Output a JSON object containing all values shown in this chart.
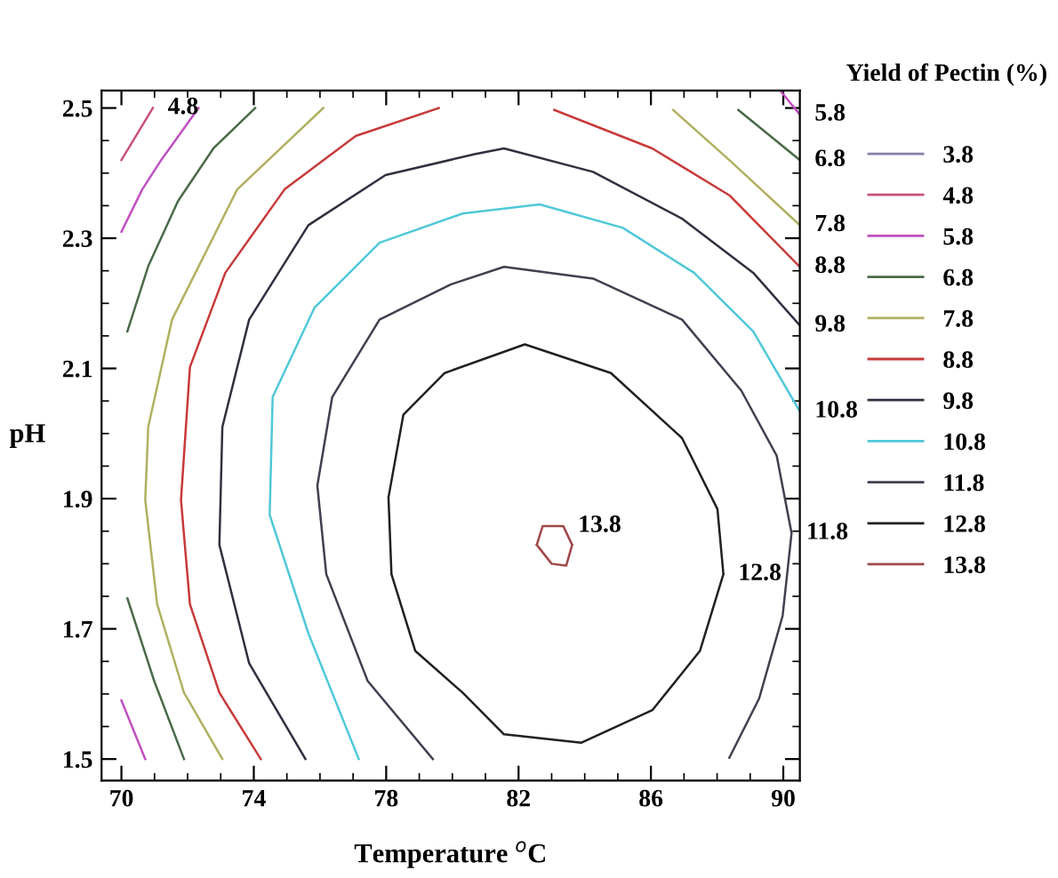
{
  "chart_data": {
    "type": "line",
    "xlabel": "Temperature $^{o}$C",
    "ylabel": "pH",
    "legend_title": "Yield of Pectin (%)",
    "legend": "right",
    "grid": false,
    "marker": "none",
    "line_style": "solid",
    "xlim": [
      69.4,
      90.5
    ],
    "ylim": [
      1.467,
      2.527
    ],
    "xticks": [
      70,
      74,
      78,
      82,
      86,
      90
    ],
    "yticks": [
      1.5,
      1.7,
      1.9,
      2.1,
      2.3,
      2.5
    ],
    "series": [
      {
        "name": "3.8",
        "color": "#8a7fa8"
      },
      {
        "name": "4.8",
        "color": "#c8507a",
        "x": [
          70.0,
          70.95
        ],
        "values": [
          2.42,
          2.5
        ]
      },
      {
        "name": "5.8",
        "color": "#c050c0",
        "x": [
          70.0,
          70.63,
          71.2,
          72.33,
          null,
          70.0,
          70.72,
          null,
          89.9,
          90.5
        ],
        "values": [
          2.31,
          2.375,
          2.42,
          2.5,
          null,
          1.59,
          1.5,
          null,
          2.527,
          2.49
        ]
      },
      {
        "name": "6.8",
        "color": "#4a6a4a",
        "x": [
          70.18,
          70.81,
          71.71,
          72.78,
          74.04,
          null,
          70.18,
          70.99,
          71.89,
          null,
          88.64,
          89.63,
          90.5
        ],
        "values": [
          2.157,
          2.257,
          2.357,
          2.438,
          2.5,
          null,
          1.747,
          1.62,
          1.5,
          null,
          2.497,
          2.456,
          2.42
        ]
      },
      {
        "name": "7.8",
        "color": "#b0b060",
        "x": [
          76.1,
          73.5,
          71.53,
          70.81,
          70.72,
          71.08,
          71.89,
          73.05,
          null,
          86.67,
          88.37,
          90.5
        ],
        "values": [
          2.5,
          2.375,
          2.175,
          2.01,
          1.898,
          1.738,
          1.602,
          1.5,
          null,
          2.497,
          2.42,
          2.32
        ]
      },
      {
        "name": "8.8",
        "color": "#c83a3a",
        "x": [
          79.59,
          77.08,
          74.93,
          73.14,
          72.07,
          71.8,
          72.07,
          72.96,
          74.21,
          null,
          83.08,
          86.04,
          88.37,
          90.5
        ],
        "values": [
          2.5,
          2.457,
          2.375,
          2.247,
          2.102,
          1.898,
          1.738,
          1.602,
          1.5,
          null,
          2.497,
          2.438,
          2.366,
          2.256
        ]
      },
      {
        "name": "9.8",
        "color": "#303040",
        "x": [
          75.56,
          73.86,
          72.96,
          73.05,
          73.86,
          75.65,
          77.98,
          80.67,
          81.56,
          84.25,
          86.94,
          89.09,
          90.5
        ],
        "values": [
          1.5,
          1.647,
          1.829,
          2.01,
          2.175,
          2.32,
          2.397,
          2.429,
          2.438,
          2.402,
          2.33,
          2.247,
          2.166
        ]
      },
      {
        "name": "10.8",
        "color": "#50c8d8",
        "x": [
          77.17,
          75.65,
          74.48,
          74.57,
          75.83,
          77.8,
          80.31,
          82.64,
          85.15,
          87.3,
          89.09,
          90.5
        ],
        "values": [
          1.5,
          1.693,
          1.875,
          2.056,
          2.193,
          2.293,
          2.338,
          2.352,
          2.316,
          2.247,
          2.157,
          2.034
        ]
      },
      {
        "name": "11.8",
        "color": "#404050",
        "x": [
          79.41,
          77.44,
          76.19,
          75.92,
          76.37,
          77.8,
          79.95,
          81.56,
          84.25,
          86.94,
          88.73,
          89.8,
          90.25,
          89.98,
          89.27,
          88.37
        ],
        "values": [
          1.5,
          1.62,
          1.784,
          1.92,
          2.056,
          2.175,
          2.229,
          2.256,
          2.238,
          2.175,
          2.066,
          1.966,
          1.847,
          1.72,
          1.593,
          1.502
        ]
      },
      {
        "name": "12.8",
        "color": "#202020",
        "x": [
          78.07,
          78.52,
          79.77,
          82.19,
          84.79,
          86.94,
          88.01,
          88.19,
          null,
          88.19,
          87.48,
          86.04,
          83.89,
          81.56,
          80.31,
          78.88,
          78.16,
          78.07
        ],
        "values": [
          1.902,
          2.029,
          2.093,
          2.137,
          2.093,
          1.993,
          1.884,
          1.784,
          null,
          1.784,
          1.666,
          1.575,
          1.525,
          1.538,
          1.602,
          1.666,
          1.784,
          1.902
        ]
      },
      {
        "name": "13.8",
        "color": "#a04848",
        "x": [
          82.55,
          82.73,
          83.35,
          83.62,
          null,
          83.62,
          83.44,
          83.0,
          82.55
        ],
        "values": [
          1.829,
          1.858,
          1.858,
          1.829,
          null,
          1.829,
          1.797,
          1.8,
          1.829
        ]
      }
    ],
    "annotations": [
      {
        "text": "4.8",
        "x": 70.95,
        "y": 2.5
      },
      {
        "text": "5.8",
        "x": 90.5,
        "y": 2.49
      },
      {
        "text": "6.8",
        "x": 90.5,
        "y": 2.42
      },
      {
        "text": "7.8",
        "x": 90.5,
        "y": 2.32
      },
      {
        "text": "8.8",
        "x": 90.5,
        "y": 2.256
      },
      {
        "text": "9.8",
        "x": 90.5,
        "y": 2.166
      },
      {
        "text": "10.8",
        "x": 90.5,
        "y": 2.034
      },
      {
        "text": "11.8",
        "x": 90.25,
        "y": 1.847
      },
      {
        "text": "12.8",
        "x": 88.19,
        "y": 1.784
      },
      {
        "text": "13.8",
        "x": 83.35,
        "y": 1.858
      }
    ]
  }
}
